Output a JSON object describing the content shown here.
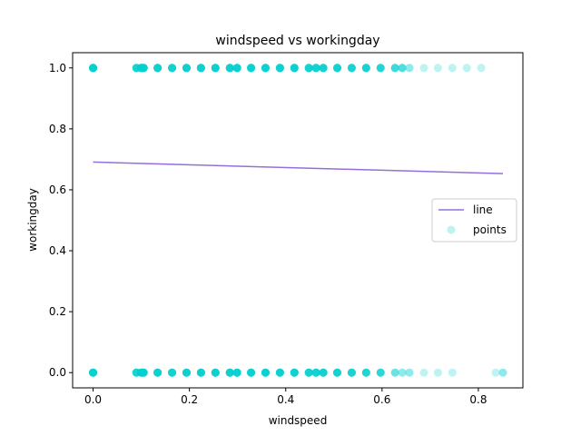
{
  "chart_data": {
    "type": "scatter",
    "title": "windspeed vs workingday",
    "xlabel": "windspeed",
    "ylabel": "workingday",
    "xlim": [
      -0.0425,
      0.8925
    ],
    "ylim": [
      -0.05,
      1.05
    ],
    "xticks": [
      0.0,
      0.2,
      0.4,
      0.6,
      0.8
    ],
    "xtick_labels": [
      "0.0",
      "0.2",
      "0.4",
      "0.6",
      "0.8"
    ],
    "yticks": [
      0.0,
      0.2,
      0.4,
      0.6,
      0.8,
      1.0
    ],
    "ytick_labels": [
      "0.0",
      "0.2",
      "0.4",
      "0.6",
      "0.8",
      "1.0"
    ],
    "grid": false,
    "legend_position": "center-right",
    "series": [
      {
        "name": "line",
        "kind": "line",
        "color": "#9370db",
        "x": [
          0.0,
          0.851
        ],
        "y": [
          0.691,
          0.653
        ]
      },
      {
        "name": "points",
        "kind": "scatter",
        "color": "#00ced1",
        "opacity": 0.25,
        "x_at_1": [
          0.0,
          0.09,
          0.1,
          0.105,
          0.134,
          0.164,
          0.194,
          0.224,
          0.254,
          0.284,
          0.299,
          0.328,
          0.358,
          0.388,
          0.418,
          0.448,
          0.463,
          0.478,
          0.507,
          0.537,
          0.567,
          0.597,
          0.627,
          0.642,
          0.657,
          0.687,
          0.716,
          0.746,
          0.776,
          0.806
        ],
        "x_at_0": [
          0.0,
          0.09,
          0.1,
          0.105,
          0.134,
          0.164,
          0.194,
          0.224,
          0.254,
          0.284,
          0.299,
          0.328,
          0.358,
          0.388,
          0.418,
          0.448,
          0.463,
          0.478,
          0.507,
          0.537,
          0.567,
          0.597,
          0.627,
          0.642,
          0.657,
          0.687,
          0.716,
          0.746,
          0.836,
          0.851
        ],
        "counts_at_1": [
          12,
          8,
          10,
          10,
          10,
          9,
          10,
          10,
          10,
          10,
          10,
          10,
          10,
          10,
          10,
          9,
          9,
          9,
          9,
          8,
          8,
          7,
          5,
          4,
          2,
          1,
          1,
          1,
          1,
          1
        ],
        "counts_at_0": [
          12,
          8,
          10,
          10,
          10,
          9,
          10,
          10,
          10,
          10,
          10,
          10,
          10,
          10,
          10,
          9,
          9,
          9,
          9,
          8,
          7,
          6,
          3,
          2,
          2,
          1,
          1,
          1,
          1,
          2
        ]
      }
    ]
  }
}
